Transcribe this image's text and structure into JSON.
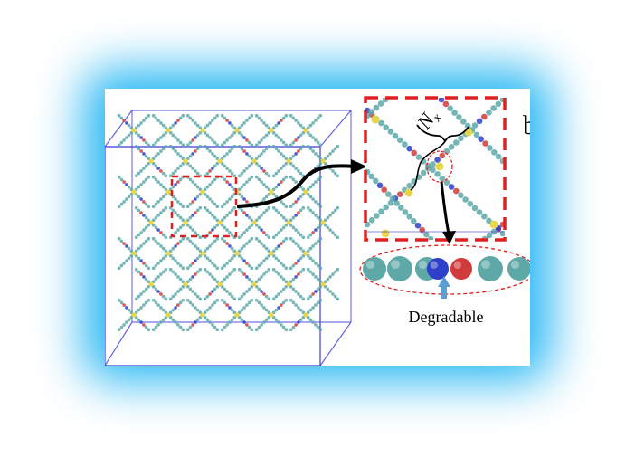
{
  "labels": {
    "nx_main": "N",
    "nx_sub": "x",
    "degradable": "Degradable",
    "panel_letter": "b"
  },
  "colors": {
    "glow": "#27b7f3",
    "box_edge": "#3b3bd9",
    "bead_teal": "#5ea8a8",
    "bead_yellow": "#e7d64a",
    "bead_red": "#d13b3b",
    "bead_blue": "#2e3fc9",
    "zoom_dash": "#e02020",
    "ellipse_dash": "#e02020",
    "arrow": "#000000",
    "pointer_arrow": "#5a9fd4"
  },
  "icons": {
    "zoom_arrow": "curved-arrow-icon",
    "pointer": "up-arrow-icon"
  }
}
